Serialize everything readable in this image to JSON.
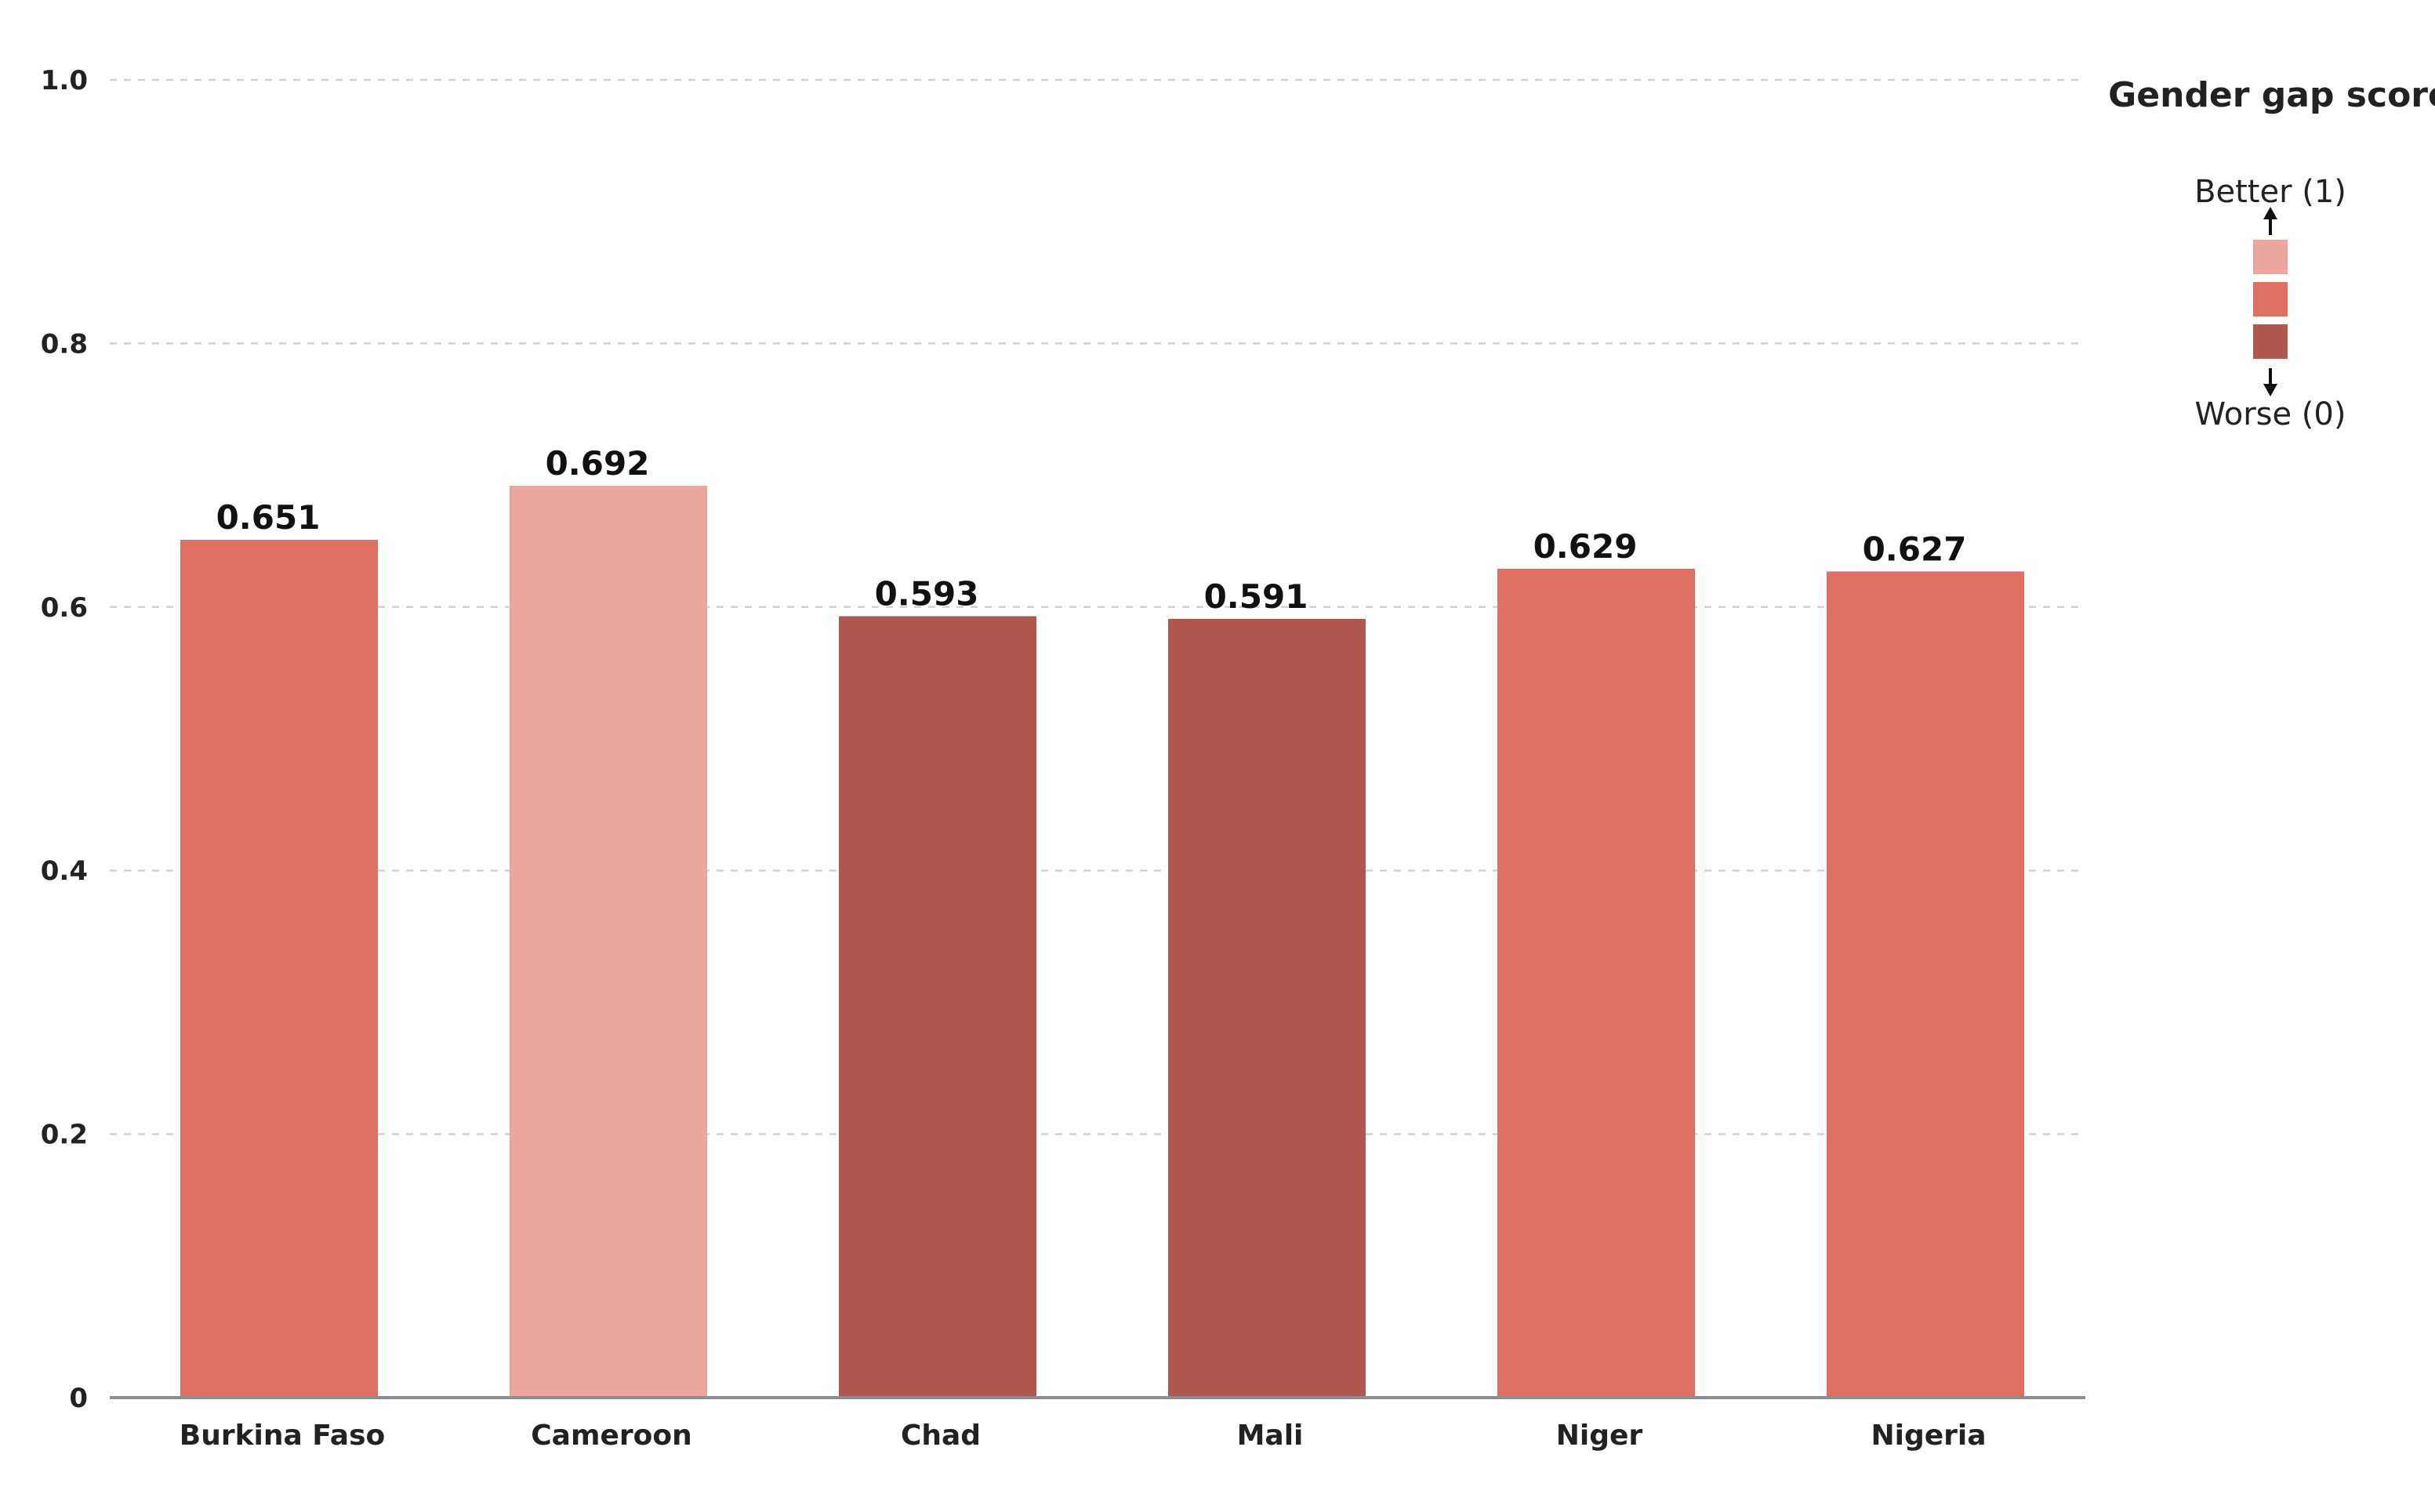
{
  "chart_data": {
    "type": "bar",
    "title": "",
    "xlabel": "",
    "ylabel": "",
    "ylim": [
      0,
      1.0
    ],
    "yticks": [
      "0",
      "0.2",
      "0.4",
      "0.6",
      "0.8",
      "1.0"
    ],
    "grid": true,
    "categories": [
      "Burkina Faso",
      "Cameroon",
      "Chad",
      "Mali",
      "Niger",
      "Nigeria"
    ],
    "values": [
      0.651,
      0.692,
      0.593,
      0.591,
      0.629,
      0.627
    ],
    "value_labels": [
      "0.651",
      "0.692",
      "0.593",
      "0.591",
      "0.629",
      "0.627"
    ],
    "bar_colors": [
      "#e06e61",
      "#eba69f",
      "#b0574e",
      "#b0574e",
      "#e06e61",
      "#e06e61"
    ],
    "legend": {
      "placement": "top-right",
      "title": "Gender gap score",
      "top_label": "Better (1)",
      "bottom_label": "Worse (0)",
      "swatches": [
        "#eba69f",
        "#e06e61",
        "#b0574e"
      ]
    }
  }
}
